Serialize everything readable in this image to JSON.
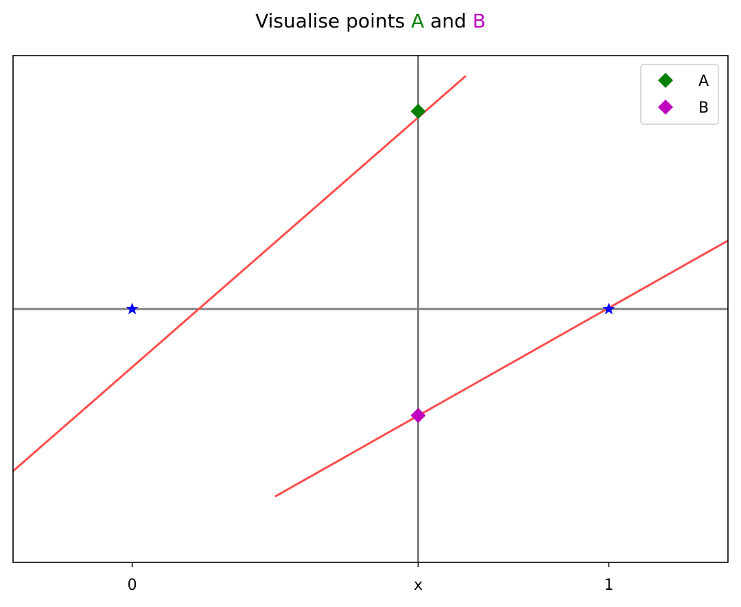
{
  "chart_data": {
    "type": "line",
    "title": {
      "prefix": "Visualise points ",
      "a_label": "A",
      "middle": " and ",
      "b_label": "B",
      "a_color": "#008000",
      "b_color": "#bf00bf"
    },
    "xlim": [
      -0.25,
      1.25
    ],
    "ylim": [
      -1,
      1
    ],
    "x_ticks": [
      {
        "value": 0,
        "label": "0"
      },
      {
        "value": 0.6,
        "label": "x"
      },
      {
        "value": 1,
        "label": "1"
      }
    ],
    "y_ticks": [],
    "reference_lines": {
      "vertical_x": 0.6,
      "horizontal_y": 0,
      "color": "#808080"
    },
    "series": [
      {
        "type": "line",
        "x": [
          -0.25,
          0.7
        ],
        "y": [
          -0.64,
          0.92
        ],
        "color": "#ff4d4d"
      },
      {
        "type": "line",
        "x": [
          0.3,
          1.25
        ],
        "y": [
          -0.74,
          0.27
        ],
        "color": "#ff4d4d"
      },
      {
        "type": "scatter",
        "marker": "star",
        "x": [
          0,
          1
        ],
        "y": [
          0,
          0
        ],
        "color": "#0000ff"
      },
      {
        "type": "scatter",
        "marker": "diamond",
        "name": "A",
        "x": [
          0.6
        ],
        "y": [
          0.78
        ],
        "color": "#008000"
      },
      {
        "type": "scatter",
        "marker": "diamond",
        "name": "B",
        "x": [
          0.6
        ],
        "y": [
          -0.42
        ],
        "color": "#bf00bf"
      }
    ],
    "legend": {
      "position": "top-right",
      "entries": [
        {
          "label": "A",
          "color": "#008000",
          "marker": "diamond"
        },
        {
          "label": "B",
          "color": "#bf00bf",
          "marker": "diamond"
        }
      ]
    },
    "grid": false
  }
}
